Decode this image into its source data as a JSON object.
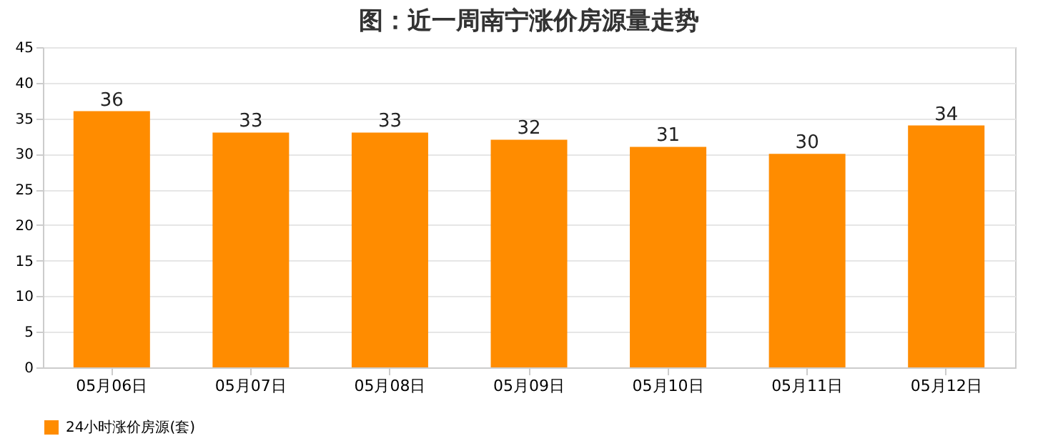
{
  "chart_data": {
    "type": "bar",
    "title": "图：近一周南宁涨价房源量走势",
    "categories": [
      "05月06日",
      "05月07日",
      "05月08日",
      "05月09日",
      "05月10日",
      "05月11日",
      "05月12日"
    ],
    "series": [
      {
        "name": "24小时涨价房源(套)",
        "color": "#ff8c00",
        "values": [
          36,
          33,
          33,
          32,
          31,
          30,
          34
        ]
      }
    ],
    "ylim": [
      0,
      45
    ],
    "yticks": [
      0,
      5,
      10,
      15,
      20,
      25,
      30,
      35,
      40,
      45
    ],
    "grid": "y",
    "legend": "bottom",
    "data_labels": true
  }
}
